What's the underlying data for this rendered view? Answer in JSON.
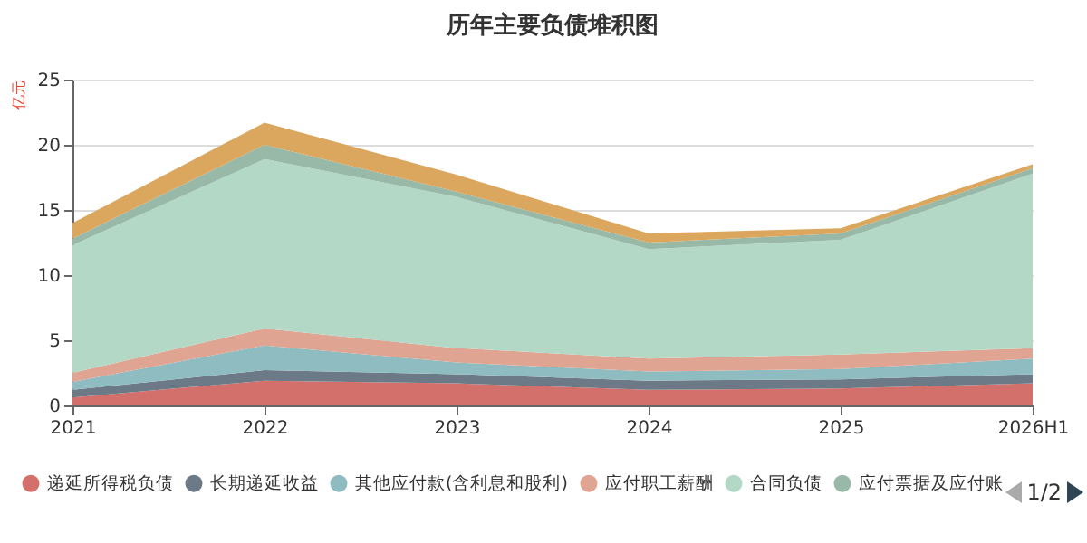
{
  "chart_data": {
    "type": "area",
    "title": "历年主要负债堆积图",
    "ylabel": "亿元",
    "categories": [
      "2021",
      "2022",
      "2023",
      "2024",
      "2025",
      "2026H1"
    ],
    "stacked": true,
    "ylim": [
      0,
      25
    ],
    "yticks": [
      0,
      5,
      10,
      15,
      20,
      25
    ],
    "grid": "y",
    "legend": "bottom",
    "annotations": [
      "1/2"
    ],
    "series": [
      {
        "name": "递延所得税负债",
        "color": "#d4706b",
        "values": [
          0.6,
          1.9,
          1.7,
          1.2,
          1.3,
          1.7
        ]
      },
      {
        "name": "长期递延收益",
        "color": "#6b7a86",
        "values": [
          0.6,
          0.8,
          0.7,
          0.7,
          0.7,
          0.7
        ]
      },
      {
        "name": "其他应付款(含利息和股利)",
        "color": "#8fbcc0",
        "values": [
          0.6,
          1.9,
          0.9,
          0.7,
          0.8,
          1.2
        ]
      },
      {
        "name": "应付职工薪酬",
        "color": "#e0a492",
        "values": [
          0.7,
          1.3,
          1.1,
          1.0,
          1.1,
          0.8
        ]
      },
      {
        "name": "合同负债",
        "color": "#b3d9c6",
        "values": [
          9.8,
          13.0,
          11.6,
          8.4,
          8.8,
          13.4
        ]
      },
      {
        "name": "应付票据及应付账",
        "color": "#98b8a8",
        "values": [
          0.5,
          1.1,
          0.4,
          0.5,
          0.5,
          0.4
        ]
      },
      {
        "color": "#dba65d",
        "values": [
          1.2,
          1.7,
          1.3,
          0.7,
          0.4,
          0.3
        ]
      }
    ]
  }
}
